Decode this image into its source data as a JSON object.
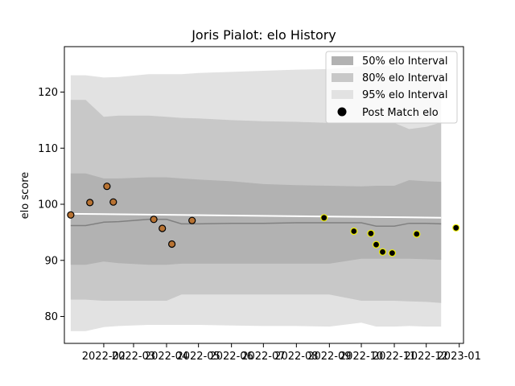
{
  "chart_data": {
    "type": "area",
    "title": "Joris Pialot: elo History",
    "xlabel": "",
    "ylabel": "elo score",
    "xlim": [
      "2021-12-26",
      "2023-01-05"
    ],
    "ylim": [
      75.2,
      128.1
    ],
    "x_ticks": [
      "2022-02",
      "2022-03",
      "2022-04",
      "2022-05",
      "2022-06",
      "2022-07",
      "2022-08",
      "2022-09",
      "2022-10",
      "2022-11",
      "2022-12",
      "2023-01"
    ],
    "y_ticks": [
      80,
      90,
      100,
      110,
      120
    ],
    "grid": false,
    "legend_position": "top-right",
    "legend": [
      "50% elo Interval",
      "80% elo Interval",
      "95% elo Interval",
      "Post Match elo"
    ],
    "bands": {
      "x": [
        "2022-01-01",
        "2022-01-15",
        "2022-02-01",
        "2022-02-15",
        "2022-03-15",
        "2022-04-01",
        "2022-04-15",
        "2022-05-01",
        "2022-06-01",
        "2022-07-01",
        "2022-08-01",
        "2022-09-01",
        "2022-10-01",
        "2022-10-15",
        "2022-11-01",
        "2022-11-15",
        "2022-12-01",
        "2022-12-15"
      ],
      "mean": [
        96.2,
        96.2,
        96.8,
        96.9,
        97.3,
        97.3,
        96.5,
        96.5,
        96.6,
        96.6,
        96.7,
        96.7,
        96.7,
        96.1,
        96.1,
        96.6,
        96.6,
        96.5
      ],
      "p50_low": [
        89.2,
        89.2,
        89.8,
        89.5,
        89.2,
        89.2,
        89.4,
        89.4,
        89.4,
        89.4,
        89.4,
        89.4,
        90.3,
        90.3,
        90.3,
        90.3,
        90.2,
        90.1
      ],
      "p50_high": [
        105.5,
        105.5,
        104.6,
        104.6,
        104.8,
        104.8,
        104.6,
        104.4,
        104.1,
        103.6,
        103.4,
        103.3,
        103.2,
        103.3,
        103.3,
        104.3,
        104.1,
        104.0
      ],
      "p80_low": [
        83.0,
        83.0,
        82.8,
        82.8,
        82.8,
        82.8,
        83.9,
        83.9,
        83.9,
        83.9,
        83.9,
        83.9,
        82.8,
        82.8,
        82.8,
        82.7,
        82.6,
        82.4
      ],
      "p80_high": [
        118.6,
        118.6,
        115.6,
        115.8,
        115.8,
        115.6,
        115.4,
        115.3,
        115.0,
        114.8,
        114.7,
        114.5,
        114.5,
        114.6,
        114.5,
        113.4,
        113.8,
        114.6
      ],
      "p95_low": [
        77.4,
        77.4,
        78.1,
        78.3,
        78.5,
        78.5,
        78.5,
        78.5,
        78.4,
        78.3,
        78.3,
        78.2,
        78.9,
        78.2,
        78.2,
        78.3,
        78.2,
        78.2
      ],
      "p95_high": [
        123.0,
        123.0,
        122.6,
        122.7,
        123.2,
        123.2,
        123.2,
        123.4,
        123.6,
        123.8,
        124.0,
        124.1,
        124.6,
        124.7,
        124.7,
        124.8,
        125.0,
        125.0
      ]
    },
    "mean_line_color": "#ffffff",
    "band_colors": {
      "p50": "#b2b2b2",
      "p80": "#c8c8c8",
      "p95": "#e2e2e2",
      "mean_gray": "#808080"
    },
    "series": [
      {
        "name": "Post Match elo",
        "marker_edge": "#000000",
        "points": [
          {
            "x": "2022-01-01",
            "y": 98.1,
            "color": "#b87333"
          },
          {
            "x": "2022-01-19",
            "y": 100.3,
            "color": "#b87333"
          },
          {
            "x": "2022-02-04",
            "y": 103.2,
            "color": "#b87333"
          },
          {
            "x": "2022-02-10",
            "y": 100.4,
            "color": "#b87333"
          },
          {
            "x": "2022-03-20",
            "y": 97.3,
            "color": "#b87333"
          },
          {
            "x": "2022-03-28",
            "y": 95.7,
            "color": "#b87333"
          },
          {
            "x": "2022-04-06",
            "y": 92.9,
            "color": "#b87333"
          },
          {
            "x": "2022-04-25",
            "y": 97.1,
            "color": "#b87333"
          },
          {
            "x": "2022-08-27",
            "y": 97.6,
            "color": "#f0f000"
          },
          {
            "x": "2022-09-24",
            "y": 95.2,
            "color": "#f0f000"
          },
          {
            "x": "2022-10-10",
            "y": 94.8,
            "color": "#f0f000"
          },
          {
            "x": "2022-10-15",
            "y": 92.8,
            "color": "#f0f000"
          },
          {
            "x": "2022-10-21",
            "y": 91.5,
            "color": "#f0f000"
          },
          {
            "x": "2022-10-30",
            "y": 91.3,
            "color": "#f0f000"
          },
          {
            "x": "2022-11-22",
            "y": 94.7,
            "color": "#f0f000"
          },
          {
            "x": "2022-12-29",
            "y": 95.8,
            "color": "#f0f000"
          }
        ]
      }
    ]
  }
}
